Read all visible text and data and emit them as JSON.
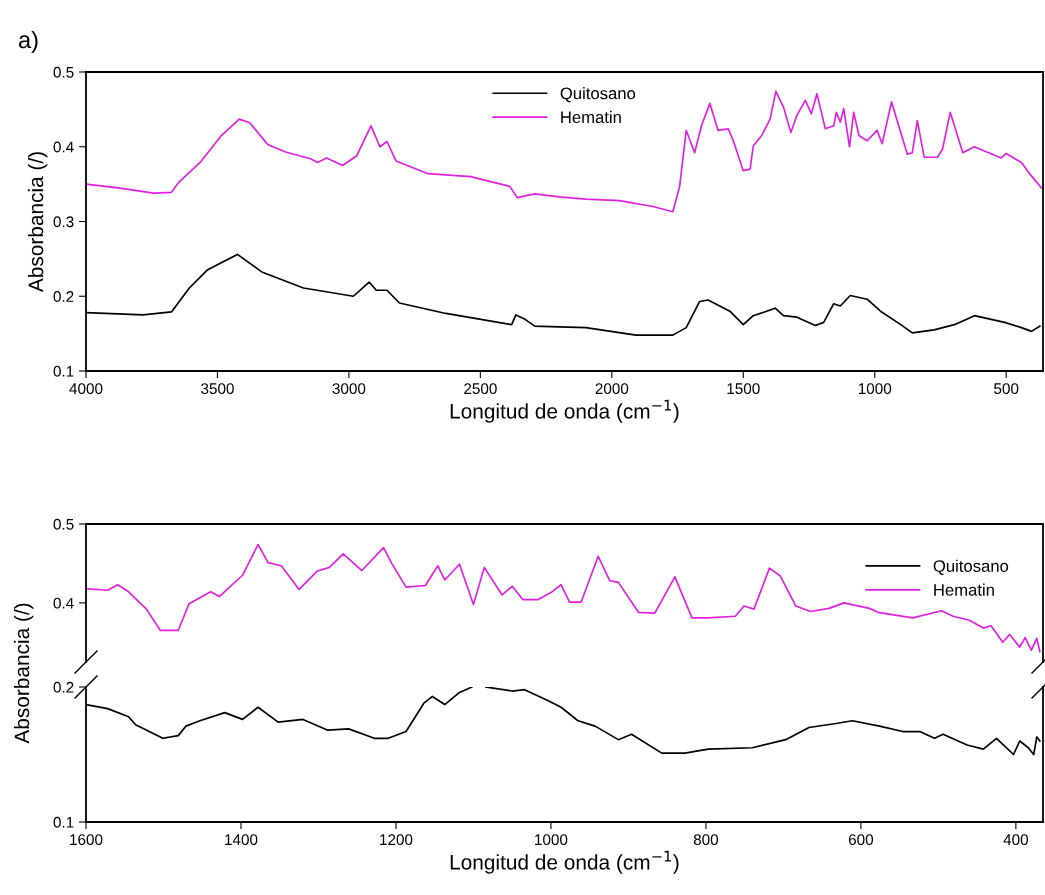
{
  "chart_data": [
    {
      "type": "line",
      "annotations": [
        "a)"
      ],
      "xlabel": "Longitud de onda (cm$^{−1}$)",
      "ylabel": "Absorbancia (/)",
      "xlim": [
        4000,
        360
      ],
      "xticks": [
        4000,
        3500,
        3000,
        2500,
        2000,
        1500,
        1000,
        500
      ],
      "ylim": [
        0.1,
        0.5
      ],
      "yticks": [
        0.1,
        0.2,
        0.3,
        0.4,
        0.5
      ],
      "legend": "top",
      "grid": false,
      "series": [
        {
          "name": "Quitosano",
          "color": "#000000",
          "x": [
            4000,
            3783,
            3675,
            3607,
            3539,
            3424,
            3329,
            3173,
            2983,
            2923,
            2896,
            2855,
            2808,
            2631,
            2381,
            2365,
            2334,
            2293,
            2201,
            2099,
            1908,
            1768,
            1717,
            1666,
            1634,
            1551,
            1500,
            1462,
            1411,
            1379,
            1347,
            1296,
            1264,
            1226,
            1194,
            1156,
            1131,
            1093,
            1029,
            978,
            901,
            857,
            774,
            697,
            621,
            506,
            442,
            404,
            372
          ],
          "values": [
            0.178,
            0.175,
            0.179,
            0.211,
            0.235,
            0.256,
            0.232,
            0.211,
            0.2,
            0.219,
            0.208,
            0.208,
            0.191,
            0.177,
            0.162,
            0.175,
            0.17,
            0.16,
            0.159,
            0.158,
            0.148,
            0.148,
            0.158,
            0.193,
            0.195,
            0.18,
            0.162,
            0.174,
            0.18,
            0.184,
            0.174,
            0.172,
            0.167,
            0.161,
            0.165,
            0.19,
            0.187,
            0.201,
            0.196,
            0.18,
            0.162,
            0.151,
            0.155,
            0.162,
            0.174,
            0.165,
            0.158,
            0.153,
            0.16
          ]
        },
        {
          "name": "Hematin",
          "color": "#e020e0",
          "x": [
            4000,
            3878,
            3743,
            3675,
            3648,
            3566,
            3485,
            3417,
            3377,
            3309,
            3241,
            3146,
            3119,
            3085,
            3024,
            2970,
            2916,
            2882,
            2855,
            2821,
            2699,
            2537,
            2388,
            2360,
            2293,
            2201,
            2099,
            1971,
            1844,
            1768,
            1742,
            1717,
            1685,
            1659,
            1627,
            1596,
            1557,
            1538,
            1500,
            1474,
            1462,
            1430,
            1398,
            1376,
            1347,
            1319,
            1296,
            1264,
            1241,
            1220,
            1188,
            1156,
            1146,
            1131,
            1118,
            1096,
            1080,
            1060,
            1029,
            991,
            972,
            936,
            876,
            857,
            838,
            812,
            761,
            742,
            713,
            665,
            621,
            519,
            500,
            442,
            404,
            366
          ],
          "values": [
            0.35,
            0.345,
            0.338,
            0.339,
            0.352,
            0.379,
            0.415,
            0.437,
            0.432,
            0.403,
            0.393,
            0.384,
            0.379,
            0.385,
            0.375,
            0.388,
            0.428,
            0.4,
            0.407,
            0.381,
            0.364,
            0.36,
            0.347,
            0.332,
            0.337,
            0.333,
            0.33,
            0.328,
            0.32,
            0.313,
            0.347,
            0.422,
            0.392,
            0.428,
            0.458,
            0.422,
            0.424,
            0.408,
            0.368,
            0.37,
            0.401,
            0.415,
            0.437,
            0.474,
            0.453,
            0.419,
            0.442,
            0.462,
            0.444,
            0.471,
            0.424,
            0.428,
            0.446,
            0.433,
            0.451,
            0.4,
            0.446,
            0.415,
            0.408,
            0.422,
            0.404,
            0.46,
            0.39,
            0.392,
            0.435,
            0.386,
            0.386,
            0.397,
            0.446,
            0.392,
            0.4,
            0.385,
            0.391,
            0.379,
            0.361,
            0.345
          ]
        }
      ]
    },
    {
      "type": "line",
      "xlim": [
        1600,
        365
      ],
      "ylim": [
        0.325,
        0.5
      ],
      "yticks": [
        0.4,
        0.5
      ],
      "tick_labels": "y",
      "legend": "top right",
      "grid": false,
      "series": [
        {
          "name": "Quitosano",
          "color": "#000000"
        },
        {
          "name": "Hematin",
          "color": "#e020e0",
          "x": [
            1600,
            1572,
            1559,
            1545,
            1522,
            1504,
            1481,
            1467,
            1439,
            1428,
            1398,
            1378,
            1365,
            1348,
            1325,
            1302,
            1286,
            1268,
            1244,
            1216,
            1206,
            1187,
            1162,
            1146,
            1137,
            1118,
            1100,
            1086,
            1063,
            1050,
            1036,
            1017,
            1000,
            987,
            976,
            961,
            939,
            924,
            913,
            887,
            866,
            840,
            818,
            797,
            762,
            751,
            738,
            718,
            704,
            684,
            665,
            641,
            622,
            589,
            578,
            533,
            496,
            481,
            460,
            442,
            432,
            417,
            408,
            395,
            388,
            380,
            373,
            369
          ],
          "values": [
            0.418,
            0.416,
            0.423,
            0.414,
            0.392,
            0.365,
            0.365,
            0.399,
            0.414,
            0.408,
            0.435,
            0.474,
            0.451,
            0.447,
            0.417,
            0.44,
            0.445,
            0.462,
            0.441,
            0.47,
            0.451,
            0.42,
            0.422,
            0.447,
            0.429,
            0.449,
            0.398,
            0.445,
            0.41,
            0.421,
            0.404,
            0.404,
            0.413,
            0.423,
            0.401,
            0.401,
            0.459,
            0.428,
            0.426,
            0.388,
            0.387,
            0.433,
            0.381,
            0.381,
            0.383,
            0.396,
            0.392,
            0.444,
            0.434,
            0.396,
            0.389,
            0.393,
            0.4,
            0.393,
            0.388,
            0.381,
            0.39,
            0.383,
            0.378,
            0.368,
            0.371,
            0.35,
            0.36,
            0.344,
            0.356,
            0.34,
            0.355,
            0.338
          ]
        }
      ]
    },
    {
      "type": "line",
      "xlabel": "Longitud de onda (cm$^{−1}$)",
      "ylabel": "Absorbancia (/)",
      "xlim": [
        1600,
        365
      ],
      "xticks": [
        1600,
        1400,
        1200,
        1000,
        800,
        600,
        400
      ],
      "ylim": [
        0.1,
        0.2
      ],
      "yticks": [
        0.1,
        0.2
      ],
      "grid": false,
      "series": [
        {
          "color": "#000000",
          "x": [
            1600,
            1572,
            1545,
            1536,
            1508,
            1501,
            1481,
            1471,
            1453,
            1421,
            1398,
            1378,
            1352,
            1320,
            1288,
            1261,
            1228,
            1210,
            1187,
            1164,
            1153,
            1137,
            1118,
            1102,
            1093,
            1084,
            1050,
            1034,
            1004,
            987,
            965,
            943,
            913,
            896,
            857,
            827,
            797,
            740,
            697,
            667,
            632,
            611,
            576,
            546,
            524,
            505,
            494,
            463,
            442,
            425,
            403,
            395,
            384,
            377,
            373,
            369
          ],
          "values": [
            0.187,
            0.184,
            0.178,
            0.172,
            0.164,
            0.162,
            0.164,
            0.171,
            0.175,
            0.181,
            0.176,
            0.185,
            0.174,
            0.176,
            0.168,
            0.169,
            0.162,
            0.162,
            0.167,
            0.188,
            0.193,
            0.187,
            0.196,
            0.2,
            null,
            0.2,
            0.197,
            0.198,
            0.19,
            0.185,
            0.175,
            0.171,
            0.161,
            0.165,
            0.151,
            0.151,
            0.154,
            0.155,
            0.161,
            0.17,
            0.173,
            0.175,
            0.171,
            0.167,
            0.167,
            0.162,
            0.165,
            0.157,
            0.154,
            0.162,
            0.15,
            0.16,
            0.155,
            0.15,
            0.163,
            0.16
          ]
        }
      ]
    }
  ]
}
